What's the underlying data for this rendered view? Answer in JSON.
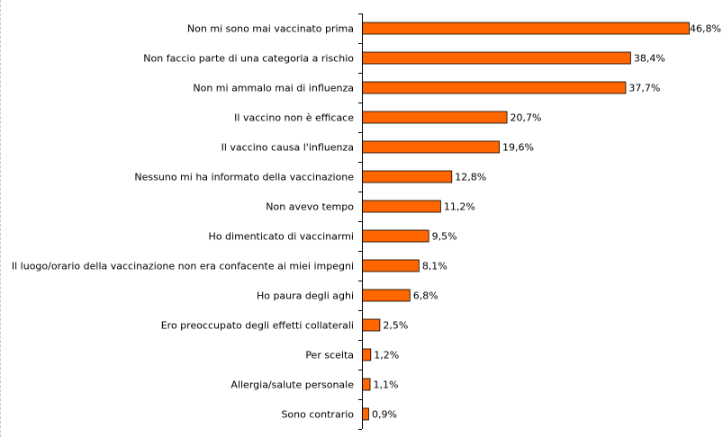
{
  "chart_data": {
    "type": "bar",
    "orientation": "horizontal",
    "categories": [
      "Non mi sono mai vaccinato prima",
      "Non faccio parte di una categoria a rischio",
      "Non mi ammalo mai di influenza",
      "Il vaccino non è efficace",
      "Il vaccino causa l'influenza",
      "Nessuno mi ha informato della vaccinazione",
      "Non avevo tempo",
      "Ho dimenticato di vaccinarmi",
      "Il luogo/orario della vaccinazione non era confacente ai miei impegni",
      "Ho paura degli aghi",
      "Ero preoccupato degli effetti collaterali",
      "Per scelta",
      "Allergia/salute personale",
      "Sono contrario"
    ],
    "values": [
      46.8,
      38.4,
      37.7,
      20.7,
      19.6,
      12.8,
      11.2,
      9.5,
      8.1,
      6.8,
      2.5,
      1.2,
      1.1,
      0.9
    ],
    "value_labels": [
      "46,8%",
      "38,4%",
      "37,7%",
      "20,7%",
      "19,6%",
      "12,8%",
      "11,2%",
      "9,5%",
      "8,1%",
      "6,8%",
      "2,5%",
      "1,2%",
      "1,1%",
      "0,9%"
    ],
    "xlim": [
      0,
      46.8
    ],
    "grid": false,
    "legend": "none",
    "colors": {
      "bar": "#FF6600",
      "bar_border": "#000000",
      "axis": "#000000"
    }
  }
}
